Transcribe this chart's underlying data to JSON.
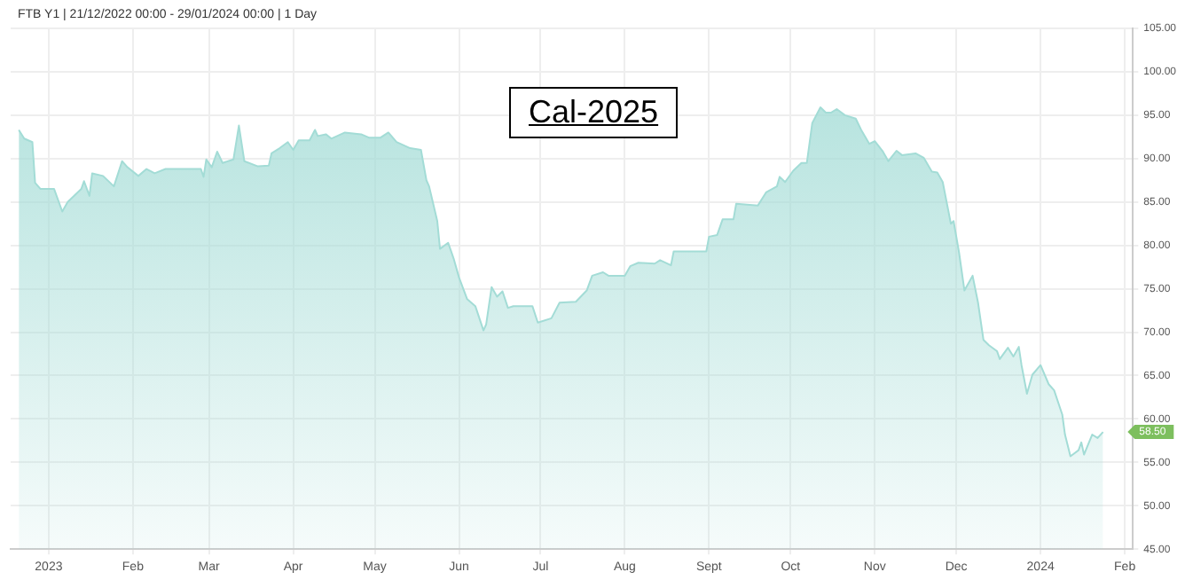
{
  "chart_data": {
    "type": "area",
    "title": "FTB Y1 | 21/12/2022 00:00 - 29/01/2024 00:00 | 1 Day",
    "annotations": [
      "Cal-2025",
      {
        "text": "58.50",
        "y": 58.5
      }
    ],
    "x": [
      "2022-12-21",
      "2022-12-23",
      "2022-12-26",
      "2022-12-27",
      "2022-12-29",
      "2023-01-03",
      "2023-01-06",
      "2023-01-08",
      "2023-01-13",
      "2023-01-14",
      "2023-01-16",
      "2023-01-17",
      "2023-01-21",
      "2023-01-25",
      "2023-01-28",
      "2023-01-30",
      "2023-02-03",
      "2023-02-06",
      "2023-02-09",
      "2023-02-13",
      "2023-02-26",
      "2023-02-27",
      "2023-02-28",
      "2023-03-02",
      "2023-03-04",
      "2023-03-06",
      "2023-03-10",
      "2023-03-12",
      "2023-03-14",
      "2023-03-19",
      "2023-03-23",
      "2023-03-24",
      "2023-03-27",
      "2023-03-30",
      "2023-04-01",
      "2023-04-03",
      "2023-04-07",
      "2023-04-09",
      "2023-04-10",
      "2023-04-13",
      "2023-04-15",
      "2023-04-20",
      "2023-04-26",
      "2023-04-29",
      "2023-05-03",
      "2023-05-06",
      "2023-05-09",
      "2023-05-14",
      "2023-05-18",
      "2023-05-20",
      "2023-05-21",
      "2023-05-24",
      "2023-05-25",
      "2023-05-28",
      "2023-05-30",
      "2023-06-01",
      "2023-06-04",
      "2023-06-07",
      "2023-06-10",
      "2023-06-11",
      "2023-06-13",
      "2023-06-15",
      "2023-06-17",
      "2023-06-19",
      "2023-06-21",
      "2023-06-28",
      "2023-06-30",
      "2023-07-05",
      "2023-07-08",
      "2023-07-14",
      "2023-07-18",
      "2023-07-20",
      "2023-07-24",
      "2023-07-26",
      "2023-08-01",
      "2023-08-03",
      "2023-08-06",
      "2023-08-12",
      "2023-08-14",
      "2023-08-18",
      "2023-08-19",
      "2023-08-31",
      "2023-09-01",
      "2023-09-04",
      "2023-09-06",
      "2023-09-10",
      "2023-09-11",
      "2023-09-19",
      "2023-09-22",
      "2023-09-26",
      "2023-09-27",
      "2023-09-29",
      "2023-10-02",
      "2023-10-05",
      "2023-10-07",
      "2023-10-09",
      "2023-10-12",
      "2023-10-14",
      "2023-10-16",
      "2023-10-18",
      "2023-10-21",
      "2023-10-25",
      "2023-10-27",
      "2023-10-30",
      "2023-11-01",
      "2023-11-04",
      "2023-11-06",
      "2023-11-09",
      "2023-11-11",
      "2023-11-16",
      "2023-11-19",
      "2023-11-22",
      "2023-11-24",
      "2023-11-26",
      "2023-11-29",
      "2023-11-30",
      "2023-12-02",
      "2023-12-04",
      "2023-12-07",
      "2023-12-09",
      "2023-12-11",
      "2023-12-13",
      "2023-12-16",
      "2023-12-17",
      "2023-12-20",
      "2023-12-22",
      "2023-12-24",
      "2023-12-25",
      "2023-12-27",
      "2023-12-29",
      "2024-01-01",
      "2024-01-04",
      "2024-01-06",
      "2024-01-09",
      "2024-01-10",
      "2024-01-12",
      "2024-01-15",
      "2024-01-16",
      "2024-01-17",
      "2024-01-20",
      "2024-01-22",
      "2024-01-24"
    ],
    "series": [
      {
        "color": "#a3dcd6",
        "values": [
          93.3,
          92.3,
          91.9,
          87.2,
          86.5,
          86.5,
          83.9,
          85.0,
          86.5,
          87.4,
          85.7,
          88.3,
          88.0,
          86.8,
          89.7,
          89.0,
          88.0,
          88.8,
          88.3,
          88.8,
          88.8,
          87.9,
          89.9,
          89.0,
          90.8,
          89.5,
          89.9,
          93.8,
          89.7,
          89.1,
          89.2,
          90.6,
          91.2,
          91.9,
          91.0,
          92.1,
          92.1,
          93.3,
          92.6,
          92.8,
          92.3,
          93.0,
          92.8,
          92.4,
          92.4,
          93.0,
          91.9,
          91.2,
          91.0,
          87.5,
          86.8,
          82.8,
          79.6,
          80.3,
          78.5,
          76.3,
          73.8,
          73.0,
          70.2,
          70.9,
          75.2,
          74.1,
          74.7,
          72.8,
          73.0,
          73.0,
          71.1,
          71.6,
          73.4,
          73.5,
          74.8,
          76.5,
          76.9,
          76.5,
          76.5,
          77.6,
          78.0,
          77.9,
          78.3,
          77.7,
          79.3,
          79.3,
          81.0,
          81.2,
          83.0,
          83.0,
          84.8,
          84.6,
          86.1,
          86.8,
          87.9,
          87.3,
          88.6,
          89.5,
          89.5,
          94.1,
          95.9,
          95.3,
          95.3,
          95.7,
          95.0,
          94.6,
          93.3,
          91.7,
          92.0,
          90.8,
          89.7,
          90.9,
          90.4,
          90.6,
          90.1,
          88.5,
          88.4,
          87.3,
          82.5,
          82.8,
          79.2,
          74.8,
          76.5,
          73.4,
          69.1,
          68.5,
          67.8,
          66.9,
          68.2,
          67.2,
          68.3,
          66.2,
          62.9,
          65.1,
          66.2,
          64.0,
          63.3,
          60.5,
          58.2,
          55.7,
          56.4,
          57.3,
          55.9,
          58.2,
          57.8,
          58.5
        ]
      }
    ],
    "xlim": [
      "2022-12-18",
      "2024-02-04"
    ],
    "xticks": [
      {
        "value": "2023-01-01",
        "label": "2023"
      },
      {
        "value": "2023-02-01",
        "label": "Feb"
      },
      {
        "value": "2023-03-01",
        "label": "Mar"
      },
      {
        "value": "2023-04-01",
        "label": "Apr"
      },
      {
        "value": "2023-05-01",
        "label": "May"
      },
      {
        "value": "2023-06-01",
        "label": "Jun"
      },
      {
        "value": "2023-07-01",
        "label": "Jul"
      },
      {
        "value": "2023-08-01",
        "label": "Aug"
      },
      {
        "value": "2023-09-01",
        "label": "Sept"
      },
      {
        "value": "2023-10-01",
        "label": "Oct"
      },
      {
        "value": "2023-11-01",
        "label": "Nov"
      },
      {
        "value": "2023-12-01",
        "label": "Dec"
      },
      {
        "value": "2024-01-01",
        "label": "2024"
      },
      {
        "value": "2024-02-01",
        "label": "Feb"
      }
    ],
    "ylim": [
      45,
      105
    ],
    "yticks": [
      {
        "value": 45,
        "label": "45.00"
      },
      {
        "value": 50,
        "label": "50.00"
      },
      {
        "value": 55,
        "label": "55.00"
      },
      {
        "value": 60,
        "label": "60.00"
      },
      {
        "value": 65,
        "label": "65.00"
      },
      {
        "value": 70,
        "label": "70.00"
      },
      {
        "value": 75,
        "label": "75.00"
      },
      {
        "value": 80,
        "label": "80.00"
      },
      {
        "value": 85,
        "label": "85.00"
      },
      {
        "value": 90,
        "label": "90.00"
      },
      {
        "value": 95,
        "label": "95.00"
      },
      {
        "value": 100,
        "label": "100.00"
      },
      {
        "value": 105,
        "label": "105.00"
      }
    ],
    "grid": true,
    "legend": false
  }
}
